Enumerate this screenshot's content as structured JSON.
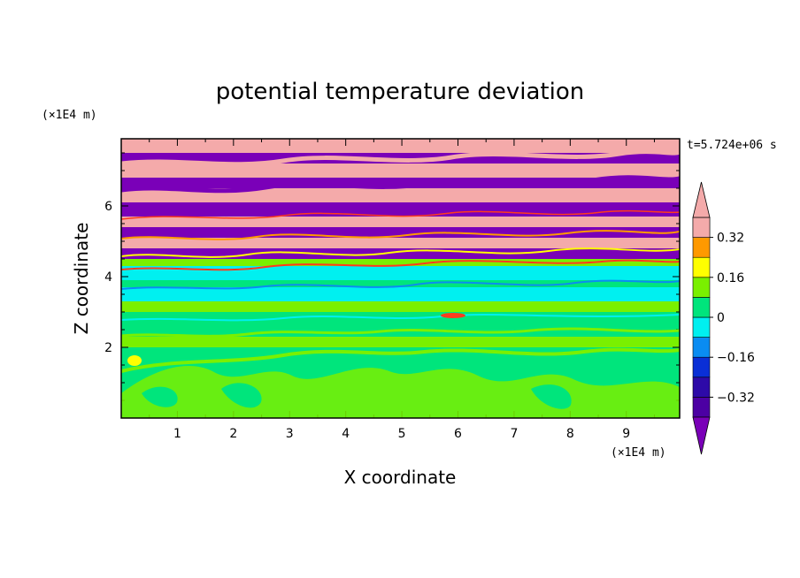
{
  "chart_data": {
    "type": "heatmap",
    "title": "potential temperature deviation",
    "xlabel": "X coordinate",
    "ylabel": "Z coordinate",
    "x_unit_label": "(×1E4 m)",
    "y_unit_label": "(×1E4 m)",
    "time_label": "t=5.724e+06 s",
    "xlim": [
      0,
      9.95
    ],
    "ylim": [
      0,
      7.9
    ],
    "x_ticks": [
      1,
      2,
      3,
      4,
      5,
      6,
      7,
      8,
      9
    ],
    "y_ticks": [
      2,
      4,
      6
    ],
    "colorbar": {
      "levels": [
        -0.4,
        -0.32,
        -0.24,
        -0.16,
        -0.08,
        0,
        0.08,
        0.16,
        0.24,
        0.32,
        0.4
      ],
      "tick_values": [
        0.32,
        0.16,
        0,
        -0.16,
        -0.32
      ],
      "tick_labels": [
        "0.32",
        "0.16",
        "0",
        "−0.16",
        "−0.32"
      ],
      "colors": [
        "#4c00a3",
        "#2d0aa8",
        "#0a2fd6",
        "#0a8cf2",
        "#00f0f0",
        "#00e57c",
        "#7af000",
        "#ffff00",
        "#ff9900",
        "#ff3b1e",
        "#f4aaaa"
      ],
      "under_color": "#7a00b8",
      "over_color": "#f4aaaa"
    },
    "bands": [
      {
        "z_min": 0.0,
        "z_max": 2.0,
        "color": "#00e57c",
        "name": "lower-green-a"
      },
      {
        "z_min": 2.0,
        "z_max": 2.3,
        "color": "#7af000",
        "name": "lower-lime"
      },
      {
        "z_min": 2.3,
        "z_max": 3.0,
        "color": "#00e57c",
        "name": "lower-green-b"
      },
      {
        "z_min": 3.0,
        "z_max": 3.3,
        "color": "#7af000",
        "name": "mid-lime"
      },
      {
        "z_min": 3.3,
        "z_max": 3.7,
        "color": "#00f0f0",
        "name": "mid-cyan-a"
      },
      {
        "z_min": 3.7,
        "z_max": 3.9,
        "color": "#00e57c",
        "name": "mid-green"
      },
      {
        "z_min": 3.9,
        "z_max": 4.3,
        "color": "#00f0f0",
        "name": "mid-cyan-b"
      },
      {
        "z_min": 4.3,
        "z_max": 4.5,
        "color": "#7af000",
        "name": "upper-lime"
      },
      {
        "z_min": 4.5,
        "z_max": 4.8,
        "color": "#7a00b8",
        "name": "stripe-1"
      },
      {
        "z_min": 4.8,
        "z_max": 5.1,
        "color": "#f4aaaa",
        "name": "stripe-2"
      },
      {
        "z_min": 5.1,
        "z_max": 5.4,
        "color": "#7a00b8",
        "name": "stripe-3"
      },
      {
        "z_min": 5.4,
        "z_max": 5.7,
        "color": "#f4aaaa",
        "name": "stripe-4"
      },
      {
        "z_min": 5.7,
        "z_max": 6.1,
        "color": "#7a00b8",
        "name": "stripe-5"
      },
      {
        "z_min": 6.1,
        "z_max": 6.5,
        "color": "#f4aaaa",
        "name": "stripe-6"
      },
      {
        "z_min": 6.5,
        "z_max": 6.8,
        "color": "#7a00b8",
        "name": "stripe-7"
      },
      {
        "z_min": 6.8,
        "z_max": 7.2,
        "color": "#f4aaaa",
        "name": "stripe-8"
      },
      {
        "z_min": 7.2,
        "z_max": 7.5,
        "color": "#7a00b8",
        "name": "stripe-9"
      },
      {
        "z_min": 7.5,
        "z_max": 7.9,
        "color": "#f4aaaa",
        "name": "stripe-10"
      }
    ]
  }
}
